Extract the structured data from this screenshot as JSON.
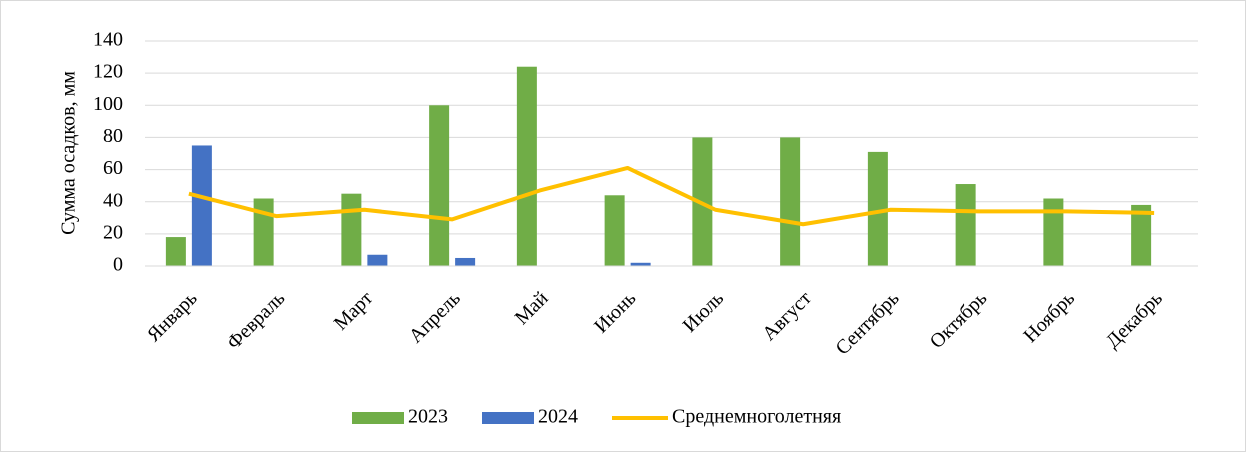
{
  "chart_data": {
    "type": "bar",
    "y_axis_label": "Сумма осадков, мм",
    "categories": [
      "Январь",
      "Февраль",
      "Март",
      "Апрель",
      "Май",
      "Июнь",
      "Июль",
      "Август",
      "Сентябрь",
      "Октябрь",
      "Ноябрь",
      "Декабрь"
    ],
    "series": [
      {
        "name": "2023",
        "color": "#70ad47",
        "values": [
          18,
          42,
          45,
          100,
          124,
          44,
          80,
          80,
          71,
          51,
          42,
          38
        ]
      },
      {
        "name": "2024",
        "color": "#4472c4",
        "values": [
          75,
          null,
          7,
          5,
          null,
          2,
          null,
          null,
          null,
          null,
          null,
          null
        ]
      },
      {
        "name": "Среднемноголетняя",
        "color": "#ffc000",
        "type": "line",
        "values": [
          45,
          31,
          35,
          29,
          47,
          61,
          35,
          26,
          35,
          34,
          34,
          33
        ]
      }
    ],
    "ylim": [
      0,
      140
    ],
    "yticks": [
      0,
      20,
      40,
      60,
      80,
      100,
      120,
      140
    ],
    "grid": true,
    "legend": "bottom"
  }
}
